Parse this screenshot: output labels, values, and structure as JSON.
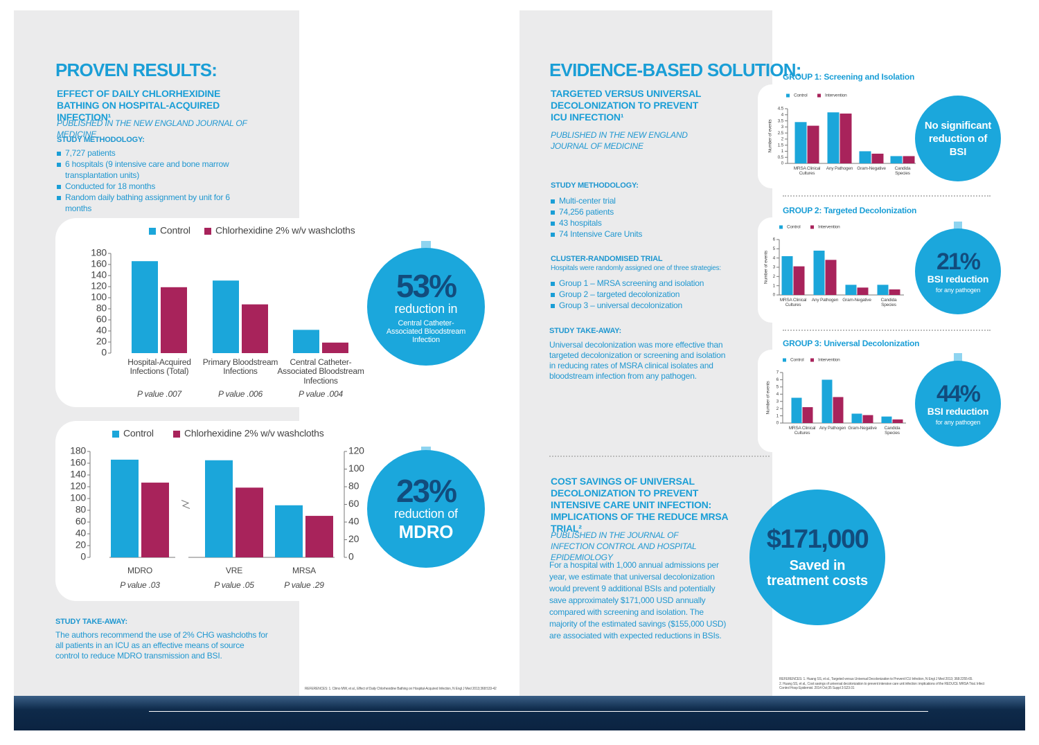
{
  "left": {
    "title": "PROVEN RESULTS:",
    "subtitle": "EFFECT OF DAILY CHLORHEXIDINE BATHING ON HOSPITAL-ACQUIRED INFECTION¹",
    "journal": "PUBLISHED IN THE NEW ENGLAND JOURNAL OF MEDICINE",
    "methodology_heading": "STUDY METHODOLOGY:",
    "methodology": [
      "7,727 patients",
      "6 hospitals (9 intensive care and bone marrow transplantation units)",
      "Conducted for 18 months",
      "Random daily bathing assignment by unit for 6 months"
    ],
    "takeaway_heading": "STUDY TAKE-AWAY:",
    "takeaway": "The authors recommend the use of 2% CHG washcloths for all patients in an ICU as an effective means of source control to reduce MDRO transmission and BSI.",
    "reference": "REFERENCES: 1. Climo MW, et al., Effect of Daily Chlorhexidine Bathing on Hospital-Acquired Infection, N Engl J Med 2013;368:533-42"
  },
  "charts": [
    {
      "type": "bar",
      "categories": [
        "Hospital-Acquired Infections (Total)",
        "Primary Bloodstream Infections",
        "Central Catheter-Associated Bloodstream Infections"
      ],
      "notes": [
        "P value .007",
        "P value .006",
        "P value .004"
      ],
      "series": [
        {
          "name": "Control",
          "color": "#1ba6da",
          "values": [
            166,
            131,
            42
          ]
        },
        {
          "name": "Chlorhexidine 2% w/v washcloths",
          "color": "#a8235b",
          "values": [
            119,
            88,
            19
          ]
        }
      ],
      "ylim": [
        0,
        180
      ],
      "yticks": [
        0,
        20,
        40,
        60,
        80,
        100,
        120,
        140,
        160,
        180
      ]
    },
    {
      "type": "bar",
      "categories": [
        "MDRO",
        "VRE",
        "MRSA"
      ],
      "category_axes": [
        "y",
        "y2",
        "y2"
      ],
      "notes": [
        "P value .03",
        "P value .05",
        "P value .29"
      ],
      "series": [
        {
          "name": "Control",
          "color": "#1ba6da",
          "values": [
            166,
            110,
            59
          ]
        },
        {
          "name": "Chlorhexidine 2% w/v washcloths",
          "color": "#a8235b",
          "values": [
            127,
            79,
            47
          ]
        }
      ],
      "ylim": [
        0,
        180
      ],
      "yticks": [
        0,
        20,
        40,
        60,
        80,
        100,
        120,
        140,
        160,
        180
      ],
      "y2lim": [
        0,
        120
      ],
      "y2ticks": [
        0,
        20,
        40,
        60,
        80,
        100,
        120
      ]
    },
    {
      "type": "bar",
      "title": "GROUP 1: Screening and Isolation",
      "y_label": "Number of events",
      "categories": [
        "MRSA Clinical Cultures",
        "Any Pathogen",
        "Gram-Negative",
        "Candida Species"
      ],
      "series": [
        {
          "name": "Control",
          "color": "#1ba6da",
          "values": [
            3.4,
            4.2,
            1.0,
            0.6
          ]
        },
        {
          "name": "Intervention",
          "color": "#a8235b",
          "values": [
            3.1,
            4.1,
            0.8,
            0.6
          ]
        }
      ],
      "ylim": [
        0,
        4.5
      ],
      "yticks": [
        0,
        0.5,
        1,
        1.5,
        2,
        2.5,
        3,
        3.5,
        4,
        4.5
      ]
    },
    {
      "type": "bar",
      "title": "GROUP 2: Targeted Decolonization",
      "y_label": "Number of events",
      "categories": [
        "MRSA Clinical Cultures",
        "Any Pathogen",
        "Gram-Negative",
        "Candida Species"
      ],
      "series": [
        {
          "name": "Control",
          "color": "#1ba6da",
          "values": [
            4.2,
            4.8,
            1.1,
            1.1
          ]
        },
        {
          "name": "Intervention",
          "color": "#a8235b",
          "values": [
            3.1,
            3.8,
            0.8,
            0.6
          ]
        }
      ],
      "ylim": [
        0,
        6
      ],
      "yticks": [
        0,
        1,
        2,
        3,
        4,
        5,
        6
      ]
    },
    {
      "type": "bar",
      "title": "GROUP 3: Universal Decolonization",
      "y_label": "Number of events",
      "categories": [
        "MRSA Clinical Cultures",
        "Any Pathogen",
        "Gram-Negative",
        "Candida Species"
      ],
      "series": [
        {
          "name": "Control",
          "color": "#1ba6da",
          "values": [
            3.5,
            6.0,
            1.3,
            0.9
          ]
        },
        {
          "name": "Intervention",
          "color": "#a8235b",
          "values": [
            2.2,
            3.6,
            1.1,
            0.5
          ]
        }
      ],
      "ylim": [
        0,
        7
      ],
      "yticks": [
        0,
        1,
        2,
        3,
        4,
        5,
        6,
        7
      ]
    }
  ],
  "callouts": [
    {
      "value": "53%",
      "line1": "reduction in",
      "line2": "Central Catheter-Associated Bloodstream Infection"
    },
    {
      "value": "23%",
      "line1": "reduction of",
      "line2": "MDRO"
    },
    {
      "text": "No significant reduction of BSI"
    },
    {
      "value": "21%",
      "line1": "BSI reduction",
      "line2": "for any pathogen"
    },
    {
      "value": "44%",
      "line1": "BSI reduction",
      "line2": "for any pathogen"
    },
    {
      "value": "$171,000",
      "line1": "Saved in treatment costs"
    }
  ],
  "right": {
    "title": "EVIDENCE-BASED SOLUTION:",
    "subtitle": "TARGETED VERSUS UNIVERSAL DECOLONIZATION TO PREVENT ICU INFECTION¹",
    "journal": "PUBLISHED IN THE NEW ENGLAND JOURNAL OF MEDICINE",
    "methodology_heading": "STUDY METHODOLOGY:",
    "methodology": [
      "Multi-center trial",
      "74,256 patients",
      "43 hospitals",
      "74 Intensive Care Units"
    ],
    "trial_heading": "CLUSTER-RANDOMISED TRIAL",
    "trial_intro": "Hospitals were randomly assigned one of three strategies:",
    "strategies": [
      "Group 1 – MRSA screening and isolation",
      "Group 2 – targeted decolonization",
      "Group 3 – universal decolonization"
    ],
    "takeaway_heading": "STUDY TAKE-AWAY:",
    "takeaway": "Universal decolonization was more effective than targeted decolonization or screening and isolation in reducing rates of MSRA clinical isolates and bloodstream infection from any pathogen.",
    "cost_title": "COST SAVINGS OF UNIVERSAL DECOLONIZATION TO PREVENT INTENSIVE CARE UNIT INFECTION: IMPLICATIONS OF THE REDUCE MRSA TRIAL²",
    "cost_journal": "PUBLISHED IN THE JOURNAL OF INFECTION CONTROL AND HOSPITAL EPIDEMIOLOGY",
    "cost_text": "For a hospital with 1,000 annual admissions per year, we estimate that universal decolonization would prevent 9 additional BSIs and potentially save approximately $171,000 USD annually compared with screening and isolation. The majority of the estimated savings ($155,000 USD) are associated with expected reductions in BSIs.",
    "references": [
      "REFERENCES: 1. Huang SS, et al., Targeted versus Universal Decolonization to Prevent ICU Infection, N Engl J Med 2013; 368:2255-65.",
      "2. Huang SS, et al., Cost savings of universal decolonization to prevent intensive care unit infection: implications of the REDUCE MRSA Trial. Infect Control Hosp Epidemiol. 2014 Oct;35 Suppl 3:S23-31"
    ]
  }
}
